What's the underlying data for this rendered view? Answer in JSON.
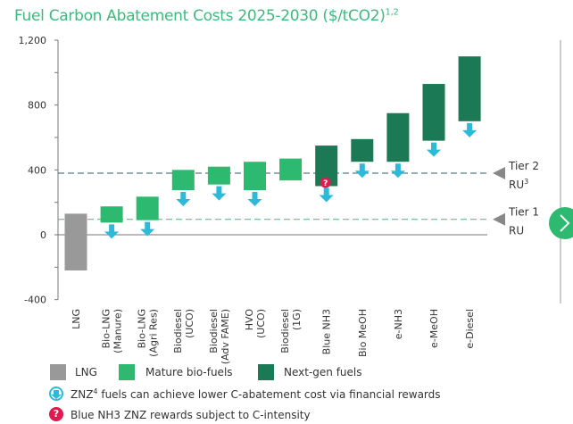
{
  "title": "Fuel Carbon Abatement Costs 2025-2030 ($/tCO2)",
  "title_superscript": "1,2",
  "colors": {
    "lng": "#999999",
    "mature": "#2dba70",
    "nextgen": "#1b7a55",
    "arrow": "#2bbbd8",
    "tier2": "#2e5a6e",
    "tier1": "#3dba7e",
    "question": "#e0194f",
    "nav": "#2dba70"
  },
  "chart_data": {
    "type": "floating-bar",
    "ylim": [
      -400,
      1200
    ],
    "yticks": [
      -400,
      0,
      400,
      800,
      1200
    ],
    "ytick_labels": [
      "-400",
      "0",
      "400",
      "800",
      "1,200"
    ],
    "categories": [
      [
        "LNG"
      ],
      [
        "Bio-LNG",
        "(Manure)"
      ],
      [
        "Bio-LNG",
        "(Agri Res)"
      ],
      [
        "Biodiesel",
        "(UCO)"
      ],
      [
        "Biodiesel",
        "(Adv FAME)"
      ],
      [
        "HVO",
        "(UCO)"
      ],
      [
        "Biodiesel",
        "(1G)"
      ],
      [
        "Blue NH3"
      ],
      [
        "Bio MeOH"
      ],
      [
        "e-NH3"
      ],
      [
        "e-MeOH"
      ],
      [
        "e-Diesel"
      ]
    ],
    "ranges": [
      [
        -220,
        130
      ],
      [
        75,
        175
      ],
      [
        90,
        235
      ],
      [
        275,
        400
      ],
      [
        310,
        420
      ],
      [
        275,
        450
      ],
      [
        335,
        470
      ],
      [
        300,
        550
      ],
      [
        450,
        590
      ],
      [
        450,
        750
      ],
      [
        580,
        930
      ],
      [
        700,
        1100
      ]
    ],
    "groups": [
      "lng",
      "mature",
      "mature",
      "mature",
      "mature",
      "mature",
      "mature",
      "nextgen",
      "nextgen",
      "nextgen",
      "nextgen",
      "nextgen"
    ],
    "reward_arrow": [
      false,
      true,
      true,
      true,
      true,
      true,
      false,
      true,
      true,
      true,
      true,
      true
    ],
    "question_mark": [
      false,
      false,
      false,
      false,
      false,
      false,
      false,
      true,
      false,
      false,
      false,
      false
    ],
    "reference_lines": [
      {
        "label": "Tier 2",
        "label2": "RU",
        "sup": "3",
        "value": 380
      },
      {
        "label": "Tier 1",
        "label2": "RU",
        "sup": "",
        "value": 95
      }
    ]
  },
  "legend": {
    "lng": "LNG",
    "mature": "Mature bio-fuels",
    "nextgen": "Next-gen fuels",
    "arrow_note": "fuels can achieve lower C-abatement cost via financial rewards",
    "arrow_prefix": "ZNZ",
    "arrow_sup": "4",
    "question_note": "Blue NH3 ZNZ rewards subject to C-intensity",
    "question_symbol": "?"
  }
}
